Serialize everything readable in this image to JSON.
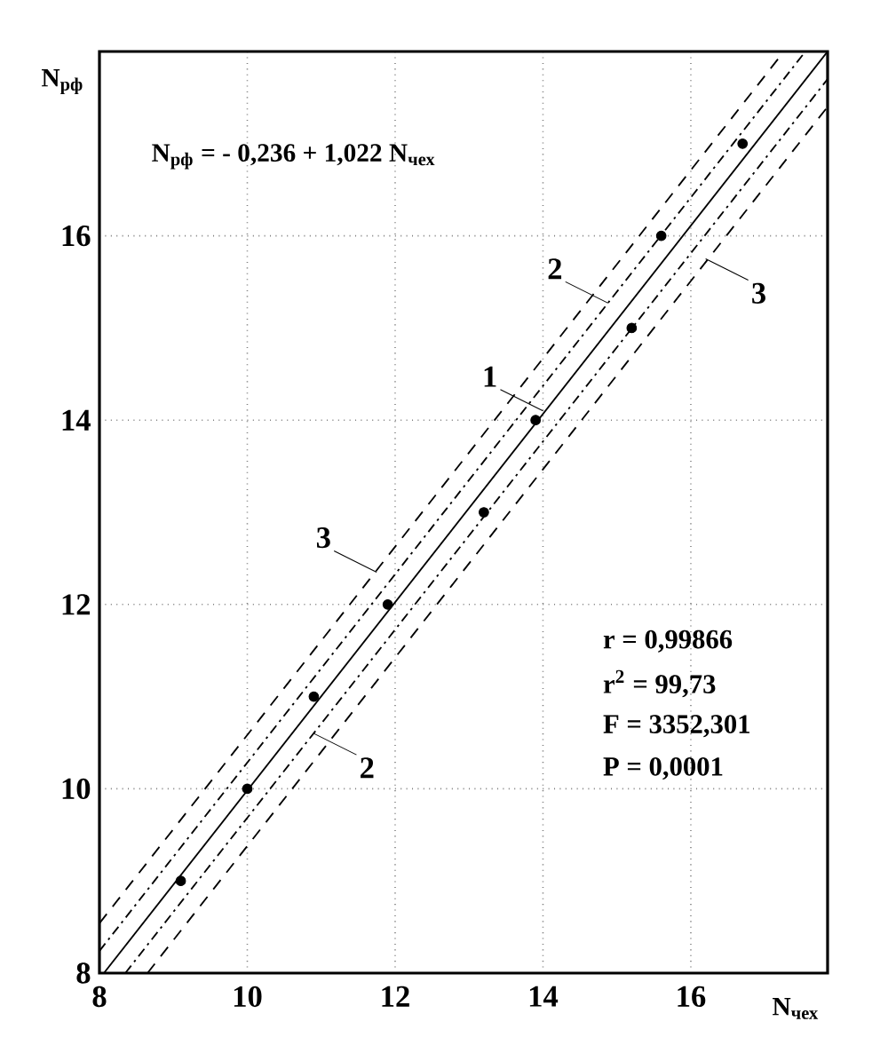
{
  "chart_data": {
    "type": "scatter",
    "xlabel": "N$_{чех}$",
    "ylabel": "N$_{рф}$",
    "xlim": [
      8,
      17.85
    ],
    "ylim": [
      8,
      18
    ],
    "xticks": [
      8,
      10,
      12,
      14,
      16
    ],
    "yticks": [
      8,
      10,
      12,
      14,
      16
    ],
    "grid": true,
    "x": [
      9.1,
      10,
      10.9,
      11.9,
      13.2,
      13.9,
      15.2,
      15.6,
      16.7
    ],
    "series": [
      {
        "color": "#000000",
        "marker": "circle",
        "values": [
          9,
          10,
          11,
          12,
          13,
          14,
          15,
          16,
          17
        ]
      },
      {
        "type": "line",
        "color": "#000000",
        "line_style": "solid",
        "marker": "none",
        "x": [
          8.06,
          17.85
        ],
        "values": [
          8,
          18
        ]
      },
      {
        "type": "line",
        "color": "#000000",
        "line_style": "dashdot",
        "marker": "none",
        "x": [
          8,
          17.55
        ],
        "values": [
          8.24,
          18
        ]
      },
      {
        "type": "line",
        "color": "#000000",
        "line_style": "dashdot",
        "marker": "none",
        "x": [
          8.35,
          17.85
        ],
        "values": [
          8,
          17.7
        ]
      },
      {
        "type": "line",
        "color": "#000000",
        "line_style": "dashed",
        "marker": "none",
        "x": [
          8,
          17.26
        ],
        "values": [
          8.54,
          18
        ]
      },
      {
        "type": "line",
        "color": "#000000",
        "line_style": "dashed",
        "marker": "none",
        "x": [
          8.65,
          17.85
        ],
        "values": [
          8,
          17.4
        ]
      }
    ],
    "annotations": [
      "N$_{рф}$ = - 0,236 + 1,022 N$_{чех}$",
      "r = 0,99866",
      "r$^{2}$ = 99,73",
      "F = 3352,301",
      "P = 0,0001",
      {
        "text": "1",
        "x": 14,
        "y": 14.1
      },
      {
        "text": "2",
        "x": 14.88,
        "y": 15.27
      },
      {
        "text": "3",
        "x": 16.2,
        "y": 15.75
      },
      {
        "text": "3",
        "x": 11.75,
        "y": 12.35
      },
      {
        "text": "2",
        "x": 10.9,
        "y": 10.6
      }
    ]
  }
}
